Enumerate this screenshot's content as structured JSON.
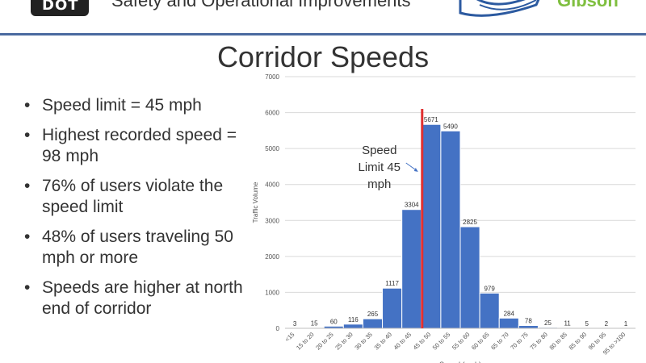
{
  "header": {
    "logo_text": "DOT",
    "title": "Safety and Operational Improvements",
    "partner_logo": "Gibson"
  },
  "slide": {
    "title": "Corridor Speeds",
    "bullets": [
      "Speed limit = 45 mph",
      "Highest recorded speed = 98 mph",
      "76% of users violate the speed limit",
      "48% of users traveling 50 mph or more",
      "Speeds are higher at north end of corridor"
    ]
  },
  "colors": {
    "bar": "#4472c4",
    "limit_line": "#e03030",
    "rule": "#4a6aa0"
  },
  "chart_data": {
    "type": "bar",
    "categories": [
      "<15",
      "15 to 20",
      "20 to 25",
      "25 to 30",
      "30 to 35",
      "35 to 40",
      "40 to 45",
      "45 to 50",
      "50 to 55",
      "55 to 60",
      "60 to 65",
      "65 to 70",
      "70 to 75",
      "75 to 80",
      "80 to 85",
      "85 to 90",
      "90 to 95",
      "95 to >100"
    ],
    "values": [
      3,
      15,
      60,
      116,
      265,
      1117,
      3304,
      5671,
      5490,
      2825,
      979,
      284,
      78,
      25,
      11,
      5,
      2,
      1
    ],
    "ylim": [
      0,
      7000
    ],
    "yticks": [
      0,
      1000,
      2000,
      3000,
      4000,
      5000,
      6000,
      7000
    ],
    "ylabel": "Traffic Volume",
    "xlabel": "Speed (mph)",
    "data_labels": true,
    "grid": "horizontal",
    "annotation": {
      "text": [
        "Speed",
        "Limit 45",
        "mph"
      ],
      "limit_value": 45
    }
  }
}
